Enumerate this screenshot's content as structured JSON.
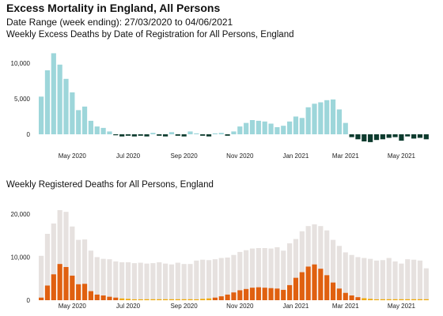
{
  "title": "Excess Mortality in England, All Persons",
  "subtitle": "Date Range (week ending): 27/03/2020 to 04/06/2021",
  "colors": {
    "excess_positive": "#9dd6da",
    "excess_negative": "#0d3b2e",
    "total_deaths": "#e6e1df",
    "covid_deaths": "#e06010",
    "covid_low": "#f2a900"
  },
  "chart_data": [
    {
      "type": "bar",
      "title": "Weekly Excess Deaths by Date of Registration for All Persons, England",
      "xlabel": "",
      "ylabel": "",
      "ylim": [
        -1200,
        12000
      ],
      "yticks": [
        0,
        5000,
        10000
      ],
      "ytick_labels": [
        "0",
        "5,000",
        "10,000"
      ],
      "xtick_labels": [
        "May 2020",
        "Jul 2020",
        "Sep 2020",
        "Nov 2020",
        "Jan 2021",
        "Mar 2021",
        "May 2021"
      ],
      "xtick_indices": [
        5,
        14,
        23,
        32,
        41,
        49,
        58
      ],
      "series": [
        {
          "values": [
            5300,
            9000,
            11400,
            9800,
            7800,
            5900,
            3400,
            3900,
            1900,
            1100,
            900,
            400,
            -100,
            -300,
            -200,
            -300,
            -200,
            -300,
            200,
            -200,
            -300,
            300,
            -200,
            -300,
            400,
            100,
            -200,
            -300,
            100,
            200,
            -200,
            400,
            1100,
            1600,
            2000,
            1900,
            1800,
            1500,
            1000,
            1200,
            1800,
            2500,
            2300,
            3800,
            4300,
            4500,
            4800,
            4900,
            3500,
            1600,
            -400,
            -700,
            -1000,
            -1100,
            -800,
            -700,
            -500,
            -400,
            -900,
            -300,
            -600,
            -500,
            -700
          ]
        }
      ]
    },
    {
      "type": "bar",
      "title": "Weekly Registered Deaths for All Persons, England",
      "xlabel": "",
      "ylabel": "",
      "ylim": [
        0,
        22000
      ],
      "yticks": [
        0,
        10000,
        20000
      ],
      "ytick_labels": [
        "0",
        "10,000",
        "20,000"
      ],
      "xtick_labels": [
        "May 2020",
        "Jul 2020",
        "Sep 2020",
        "Nov 2020",
        "Jan 2021",
        "Mar 2021",
        "May 2021"
      ],
      "xtick_indices": [
        5,
        14,
        23,
        32,
        41,
        49,
        58
      ],
      "series": [
        {
          "values": [
            10300,
            15400,
            17800,
            20900,
            20500,
            17100,
            14000,
            14100,
            11500,
            10000,
            9600,
            9500,
            9000,
            8800,
            8800,
            8600,
            8700,
            8500,
            8600,
            8800,
            8500,
            8300,
            8700,
            8400,
            8400,
            9200,
            9400,
            9300,
            9500,
            9800,
            9900,
            10500,
            11200,
            11600,
            12000,
            12100,
            12100,
            12000,
            12300,
            11500,
            13200,
            14200,
            16000,
            17200,
            17600,
            17200,
            16200,
            14000,
            12600,
            11100,
            10500,
            10000,
            9800,
            9600,
            9200,
            9300,
            9800,
            9000,
            8500,
            9500,
            9400,
            9200,
            7400
          ]
        },
        {
          "values": [
            600,
            3400,
            6000,
            8400,
            7700,
            5700,
            3700,
            3800,
            2100,
            1300,
            1100,
            800,
            600,
            400,
            300,
            200,
            200,
            150,
            100,
            100,
            100,
            100,
            100,
            100,
            150,
            200,
            300,
            400,
            600,
            900,
            1300,
            1800,
            2300,
            2600,
            2900,
            3000,
            2900,
            2800,
            2700,
            2400,
            3500,
            5200,
            6500,
            7800,
            8300,
            7300,
            5800,
            4100,
            2700,
            1700,
            1100,
            700,
            450,
            300,
            200,
            150,
            100,
            100,
            80,
            80,
            70,
            60,
            60
          ]
        }
      ]
    }
  ]
}
